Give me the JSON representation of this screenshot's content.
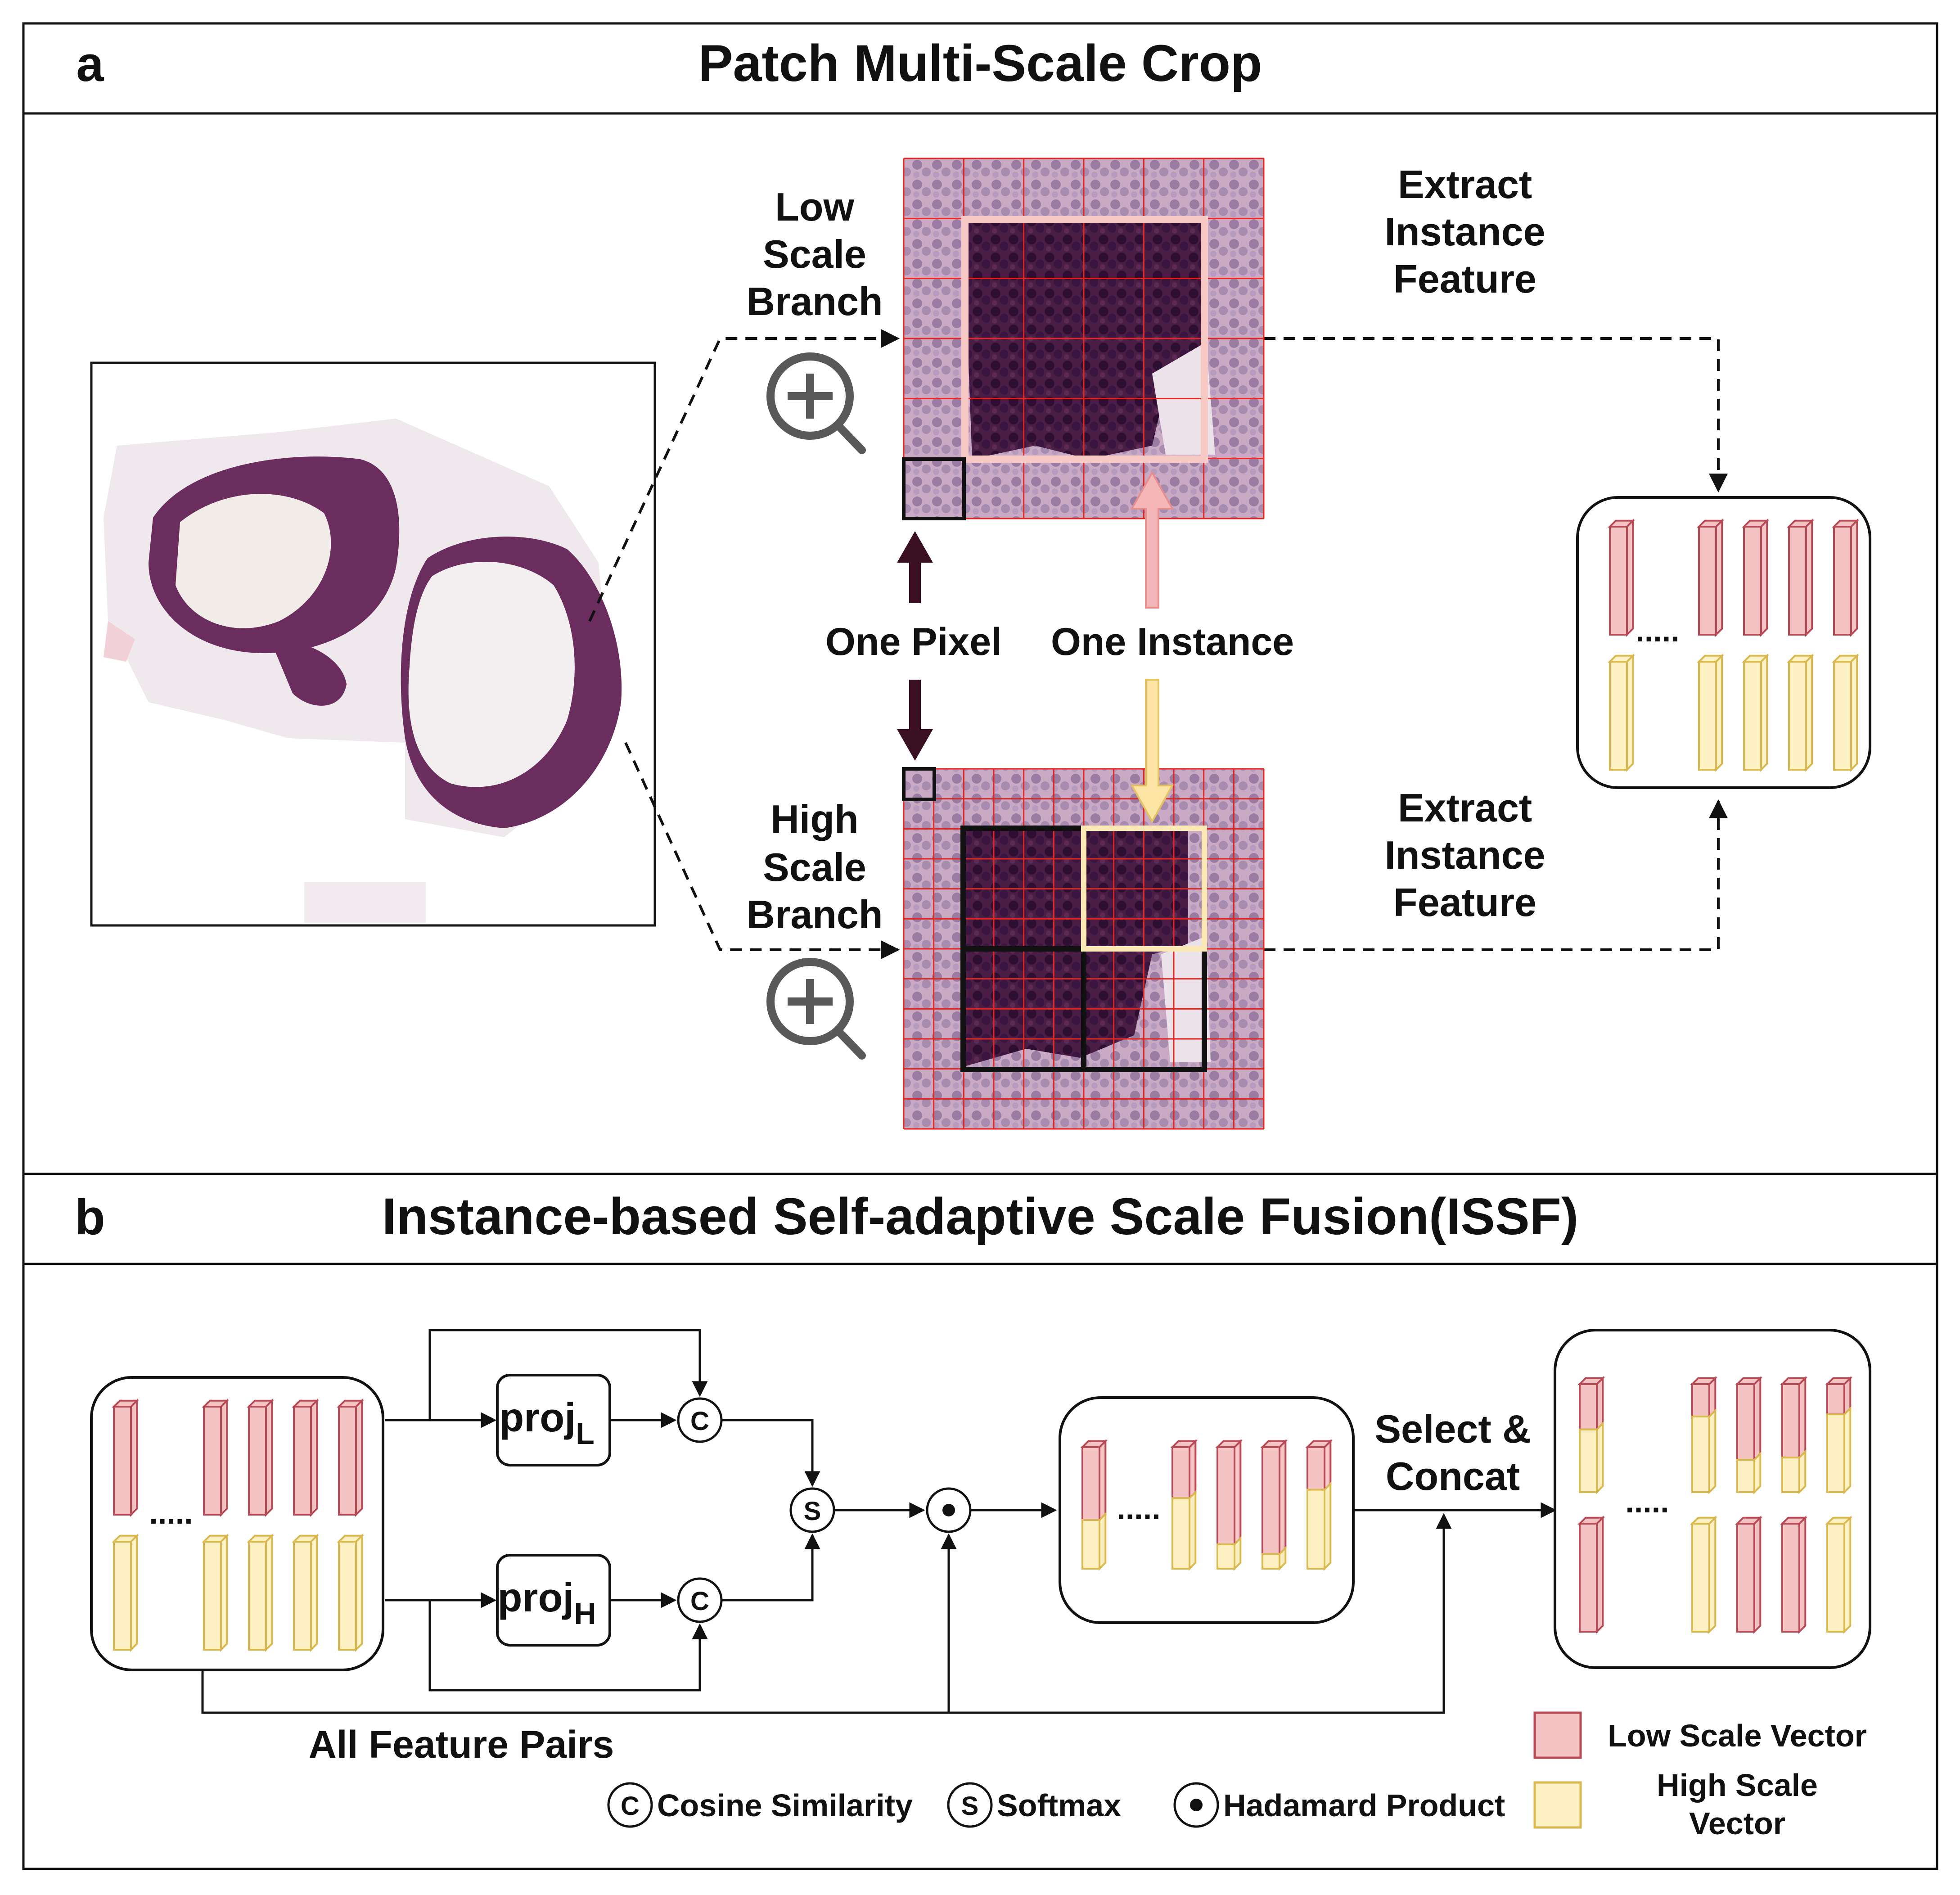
{
  "panel_a": {
    "letter": "a",
    "title": "Patch Multi-Scale Crop",
    "low_branch": [
      "Low",
      "Scale",
      "Branch"
    ],
    "high_branch": [
      "High",
      "Scale",
      "Branch"
    ],
    "extract_top": [
      "Extract",
      "Instance",
      "Feature"
    ],
    "extract_bottom": [
      "Extract",
      "Instance",
      "Feature"
    ],
    "one_pixel": "One Pixel",
    "one_instance": "One Instance",
    "dots": "....."
  },
  "panel_b": {
    "letter": "b",
    "title": "Instance-based Self-adaptive Scale Fusion(ISSF)",
    "proj_l": "proj",
    "proj_l_sub": "L",
    "proj_h": "proj",
    "proj_h_sub": "H",
    "cos_symbol": "C",
    "softmax_symbol": "S",
    "select_concat": [
      "Select &",
      "Concat"
    ],
    "all_feature_pairs": "All Feature Pairs",
    "dots": ".....",
    "legend": {
      "cosine": "Cosine Similarity",
      "softmax": "Softmax",
      "hadamard": "Hadamard Product",
      "low_vector": "Low Scale Vector",
      "high_vector": [
        "High Scale",
        "Vector"
      ]
    }
  },
  "colors": {
    "low": "#f4c3c4",
    "low_stroke": "#b84a56",
    "high": "#fdf1c3",
    "high_stroke": "#d9b84f",
    "tissue": "#6b2d5e",
    "grid": "#e3261f",
    "dark_arrow": "#3a0f22",
    "pink_arrow": "#f4b6b6",
    "yellow_arrow": "#fbe4a4",
    "instance_box_low": "#f7c9c5",
    "instance_box_high": "#fbe8b5"
  }
}
